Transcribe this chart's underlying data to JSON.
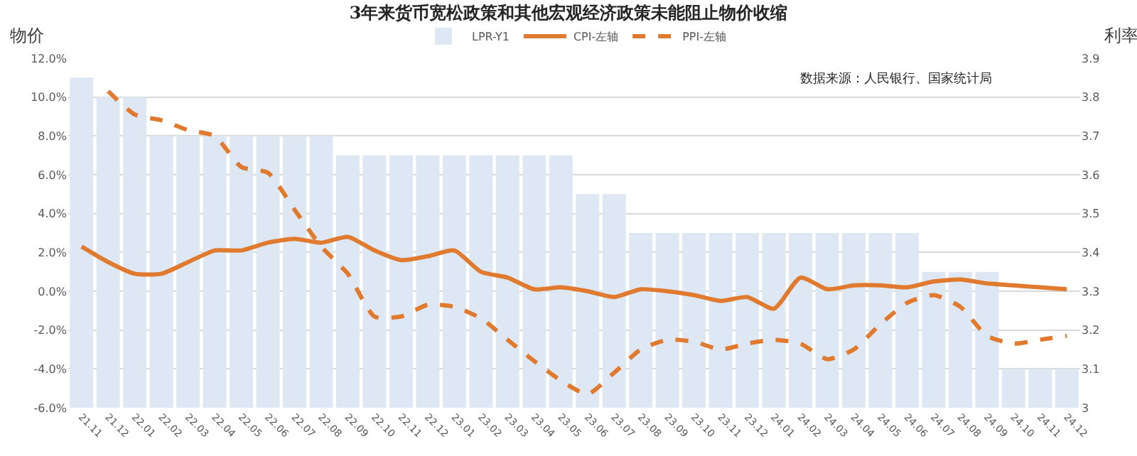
{
  "chart_data": {
    "type": "bar",
    "title": "3年来货币宽松政策和其他宏观经济政策未能阻止物价收缩",
    "ylabel": "物价",
    "y2label": "利率",
    "categories": [
      "21.11",
      "21.12",
      "22.01",
      "22.02",
      "22.03",
      "22.04",
      "22.05",
      "22.06",
      "22.07",
      "22.08",
      "22.09",
      "22.10",
      "22.11",
      "22.12",
      "23.01",
      "23.02",
      "23.03",
      "23.04",
      "23.05",
      "23.06",
      "23.07",
      "23.08",
      "23.09",
      "23.10",
      "23.11",
      "23.12",
      "24.01",
      "24.02",
      "24.03",
      "24.04",
      "24.05",
      "24.06",
      "24.07",
      "24.08",
      "24.09",
      "24.10",
      "24.11",
      "24.12"
    ],
    "series": [
      {
        "name": "LPR-Y1",
        "axis": "y2",
        "color": "#dde8f4",
        "values": [
          3.85,
          3.8,
          3.8,
          3.7,
          3.7,
          3.7,
          3.7,
          3.7,
          3.7,
          3.7,
          3.65,
          3.65,
          3.65,
          3.65,
          3.65,
          3.65,
          3.65,
          3.65,
          3.65,
          3.55,
          3.55,
          3.45,
          3.45,
          3.45,
          3.45,
          3.45,
          3.45,
          3.45,
          3.45,
          3.45,
          3.45,
          3.45,
          3.35,
          3.35,
          3.35,
          3.1,
          3.1,
          3.1
        ]
      },
      {
        "name": "CPI-左轴",
        "type": "line",
        "color": "#e07a2f",
        "line_style": "solid",
        "values": [
          2.3,
          1.5,
          0.9,
          0.9,
          1.5,
          2.1,
          2.1,
          2.5,
          2.7,
          2.5,
          2.8,
          2.1,
          1.6,
          1.8,
          2.1,
          1.0,
          0.7,
          0.1,
          0.2,
          0.0,
          -0.3,
          0.1,
          0.0,
          -0.2,
          -0.5,
          -0.3,
          -0.9,
          0.7,
          0.1,
          0.3,
          0.3,
          0.2,
          0.5,
          0.6,
          0.4,
          0.3,
          0.2,
          0.1
        ]
      },
      {
        "name": "PPI-左轴",
        "type": "line",
        "color": "#e07a2f",
        "line_style": "dashed",
        "values": [
          null,
          10.3,
          9.1,
          8.8,
          8.3,
          8.0,
          6.4,
          6.1,
          4.2,
          2.3,
          0.9,
          -1.3,
          -1.3,
          -0.7,
          -0.8,
          -1.4,
          -2.5,
          -3.6,
          -4.6,
          -5.3,
          -4.2,
          -3.0,
          -2.5,
          -2.6,
          -3.0,
          -2.7,
          -2.5,
          -2.7,
          -3.5,
          -3.0,
          -1.7,
          -0.6,
          -0.2,
          -0.8,
          -2.3,
          -2.7,
          -2.5,
          -2.3
        ]
      }
    ],
    "ylim": [
      -6,
      12
    ],
    "yticks": [
      {
        "value": -6,
        "label": "-6.0%"
      },
      {
        "value": -4,
        "label": "-4.0%"
      },
      {
        "value": -2,
        "label": "-2.0%"
      },
      {
        "value": 0,
        "label": "0.0%"
      },
      {
        "value": 2,
        "label": "2.0%"
      },
      {
        "value": 4,
        "label": "4.0%"
      },
      {
        "value": 6,
        "label": "6.0%"
      },
      {
        "value": 8,
        "label": "8.0%"
      },
      {
        "value": 10,
        "label": "10.0%"
      },
      {
        "value": 12,
        "label": "12.0%"
      }
    ],
    "y2lim": [
      3,
      3.9
    ],
    "y2ticks": [
      3,
      3.1,
      3.2,
      3.3,
      3.4,
      3.5,
      3.6,
      3.7,
      3.8,
      3.9
    ],
    "annotations": [
      "数据来源：人民银行、国家统计局"
    ],
    "grid": "y",
    "legend": "top",
    "marker": "none"
  }
}
